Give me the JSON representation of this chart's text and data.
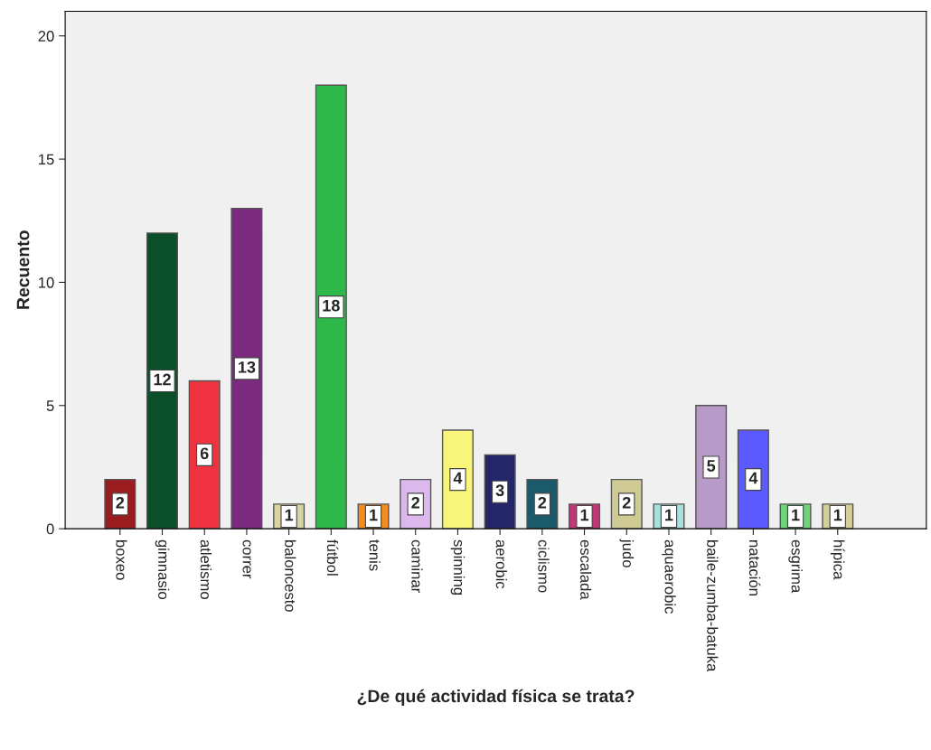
{
  "chart_data": {
    "type": "bar",
    "xlabel": "¿De qué actividad física se trata?",
    "ylabel": "Recuento",
    "categories": [
      "boxeo",
      "gimnasio",
      "atletismo",
      "correr",
      "baloncesto",
      "fútbol",
      "tenis",
      "caminar",
      "spinning",
      "aerobic",
      "ciclismo",
      "escalada",
      "judo",
      "aquaerobic",
      "baile-zumba-batuka",
      "natación",
      "esgrima",
      "hípica"
    ],
    "values": [
      2,
      12,
      6,
      13,
      1,
      18,
      1,
      2,
      4,
      3,
      2,
      1,
      2,
      1,
      5,
      4,
      1,
      1
    ],
    "colors": [
      "#9b1c1f",
      "#0b4f2a",
      "#ef3340",
      "#7b2a7f",
      "#d8d3a0",
      "#2fb84a",
      "#f28c1c",
      "#dcb8ec",
      "#f8f57a",
      "#24266a",
      "#1a5a6a",
      "#c0387a",
      "#d0cb94",
      "#a8e0e0",
      "#b89ac8",
      "#5a5aff",
      "#6ed47a",
      "#d4ce98"
    ],
    "ylim": [
      0,
      21
    ],
    "yticks": [
      0,
      5,
      10,
      15,
      20
    ],
    "grid": false,
    "data_labels": true
  }
}
